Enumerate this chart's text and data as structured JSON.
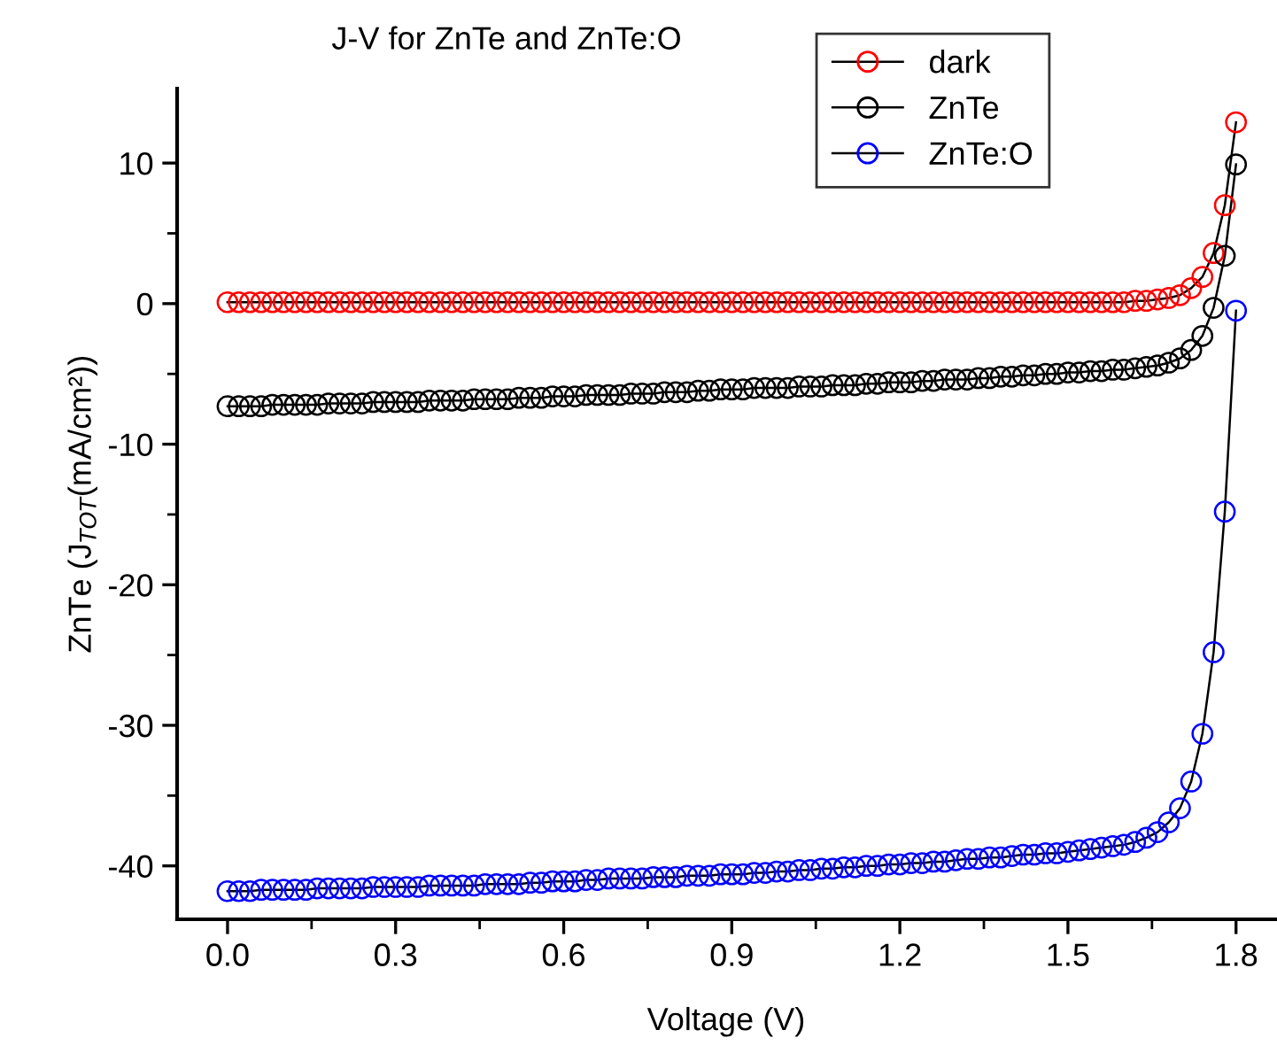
{
  "chart_data": {
    "type": "line",
    "title": "J-V for ZnTe and ZnTe:O",
    "xlabel": "Voltage (V)",
    "ylabel": "ZnTe (J$_{TOT}$(mA/cm²))",
    "x": [
      0,
      0.02,
      0.04,
      0.06,
      0.08,
      0.1,
      0.12,
      0.14,
      0.16,
      0.18,
      0.2,
      0.22,
      0.24,
      0.26,
      0.28,
      0.3,
      0.32,
      0.34,
      0.36,
      0.38,
      0.4,
      0.42,
      0.44,
      0.46,
      0.48,
      0.5,
      0.52,
      0.54,
      0.56,
      0.58,
      0.6,
      0.62,
      0.64,
      0.66,
      0.68,
      0.7,
      0.72,
      0.74,
      0.76,
      0.78,
      0.8,
      0.82,
      0.84,
      0.86,
      0.88,
      0.9,
      0.92,
      0.94,
      0.96,
      0.98,
      1.0,
      1.02,
      1.04,
      1.06,
      1.08,
      1.1,
      1.12,
      1.14,
      1.16,
      1.18,
      1.2,
      1.22,
      1.24,
      1.26,
      1.28,
      1.3,
      1.32,
      1.34,
      1.36,
      1.38,
      1.4,
      1.42,
      1.44,
      1.46,
      1.48,
      1.5,
      1.52,
      1.54,
      1.56,
      1.58,
      1.6,
      1.62,
      1.64,
      1.66,
      1.68,
      1.7,
      1.72,
      1.74,
      1.76,
      1.78,
      1.8
    ],
    "series": [
      {
        "name": "dark",
        "color": "#ff0000",
        "values": [
          0.1,
          0.1,
          0.1,
          0.1,
          0.1,
          0.1,
          0.1,
          0.1,
          0.1,
          0.1,
          0.1,
          0.1,
          0.1,
          0.1,
          0.1,
          0.1,
          0.1,
          0.1,
          0.1,
          0.1,
          0.1,
          0.1,
          0.1,
          0.1,
          0.1,
          0.1,
          0.1,
          0.1,
          0.1,
          0.1,
          0.1,
          0.1,
          0.1,
          0.1,
          0.1,
          0.1,
          0.1,
          0.1,
          0.1,
          0.1,
          0.1,
          0.1,
          0.1,
          0.1,
          0.1,
          0.1,
          0.1,
          0.1,
          0.1,
          0.1,
          0.1,
          0.1,
          0.1,
          0.1,
          0.1,
          0.1,
          0.1,
          0.1,
          0.1,
          0.1,
          0.1,
          0.1,
          0.1,
          0.1,
          0.1,
          0.1,
          0.1,
          0.1,
          0.1,
          0.1,
          0.1,
          0.1,
          0.1,
          0.1,
          0.1,
          0.1,
          0.1,
          0.1,
          0.1,
          0.1,
          0.1,
          0.2,
          0.2,
          0.3,
          0.4,
          0.6,
          1.1,
          1.9,
          3.6,
          7.0,
          12.9
        ]
      },
      {
        "name": "ZnTe",
        "color": "#000000",
        "values": [
          -7.3,
          -7.3,
          -7.3,
          -7.3,
          -7.2,
          -7.2,
          -7.2,
          -7.2,
          -7.2,
          -7.1,
          -7.1,
          -7.1,
          -7.1,
          -7.0,
          -7.0,
          -7.0,
          -7.0,
          -7.0,
          -6.9,
          -6.9,
          -6.9,
          -6.9,
          -6.8,
          -6.8,
          -6.8,
          -6.8,
          -6.7,
          -6.7,
          -6.7,
          -6.6,
          -6.6,
          -6.6,
          -6.5,
          -6.5,
          -6.5,
          -6.5,
          -6.4,
          -6.4,
          -6.4,
          -6.3,
          -6.3,
          -6.3,
          -6.2,
          -6.2,
          -6.1,
          -6.1,
          -6.1,
          -6.0,
          -6.0,
          -6.0,
          -6.0,
          -5.9,
          -5.9,
          -5.9,
          -5.8,
          -5.8,
          -5.8,
          -5.7,
          -5.7,
          -5.6,
          -5.6,
          -5.6,
          -5.5,
          -5.5,
          -5.4,
          -5.4,
          -5.4,
          -5.3,
          -5.3,
          -5.2,
          -5.2,
          -5.1,
          -5.1,
          -5.0,
          -5.0,
          -4.9,
          -4.9,
          -4.8,
          -4.8,
          -4.7,
          -4.7,
          -4.6,
          -4.5,
          -4.4,
          -4.2,
          -3.9,
          -3.3,
          -2.3,
          -0.3,
          3.4,
          9.9
        ]
      },
      {
        "name": "ZnTe:O",
        "color": "#0000ff",
        "values": [
          -41.8,
          -41.8,
          -41.8,
          -41.7,
          -41.7,
          -41.7,
          -41.7,
          -41.7,
          -41.6,
          -41.6,
          -41.6,
          -41.6,
          -41.6,
          -41.5,
          -41.5,
          -41.5,
          -41.5,
          -41.5,
          -41.4,
          -41.4,
          -41.4,
          -41.4,
          -41.4,
          -41.3,
          -41.3,
          -41.3,
          -41.3,
          -41.2,
          -41.2,
          -41.1,
          -41.1,
          -41.1,
          -41.0,
          -41.0,
          -40.9,
          -40.9,
          -40.9,
          -40.9,
          -40.8,
          -40.8,
          -40.8,
          -40.7,
          -40.7,
          -40.7,
          -40.6,
          -40.6,
          -40.6,
          -40.5,
          -40.5,
          -40.4,
          -40.4,
          -40.3,
          -40.3,
          -40.2,
          -40.2,
          -40.1,
          -40.1,
          -40.0,
          -40.0,
          -39.9,
          -39.9,
          -39.8,
          -39.8,
          -39.7,
          -39.7,
          -39.6,
          -39.5,
          -39.5,
          -39.4,
          -39.4,
          -39.3,
          -39.2,
          -39.2,
          -39.1,
          -39.1,
          -39.0,
          -38.9,
          -38.8,
          -38.7,
          -38.6,
          -38.5,
          -38.3,
          -38.0,
          -37.6,
          -36.9,
          -35.9,
          -34.0,
          -30.6,
          -24.8,
          -14.8,
          -0.5
        ]
      }
    ],
    "xlim": [
      -0.09,
      1.87
    ],
    "ylim": [
      -43.8,
      15.3
    ],
    "xticks": [
      {
        "value": 0,
        "label": "0.0"
      },
      {
        "value": 0.15,
        "label": null
      },
      {
        "value": 0.3,
        "label": "0.3"
      },
      {
        "value": 0.45,
        "label": null
      },
      {
        "value": 0.6,
        "label": "0.6"
      },
      {
        "value": 0.75,
        "label": null
      },
      {
        "value": 0.9,
        "label": "0.9"
      },
      {
        "value": 1.05,
        "label": null
      },
      {
        "value": 1.2,
        "label": "1.2"
      },
      {
        "value": 1.35,
        "label": null
      },
      {
        "value": 1.5,
        "label": "1.5"
      },
      {
        "value": 1.65,
        "label": null
      },
      {
        "value": 1.8,
        "label": "1.8"
      }
    ],
    "yticks": [
      -40,
      {
        "value": -35,
        "label": null
      },
      -30,
      {
        "value": -25,
        "label": null
      },
      -20,
      {
        "value": -15,
        "label": null
      },
      -10,
      {
        "value": -5,
        "label": null
      },
      0,
      {
        "value": 5,
        "label": null
      },
      10
    ],
    "grid": false,
    "legend": "top right",
    "marker": "circle",
    "line_style": "solid"
  }
}
